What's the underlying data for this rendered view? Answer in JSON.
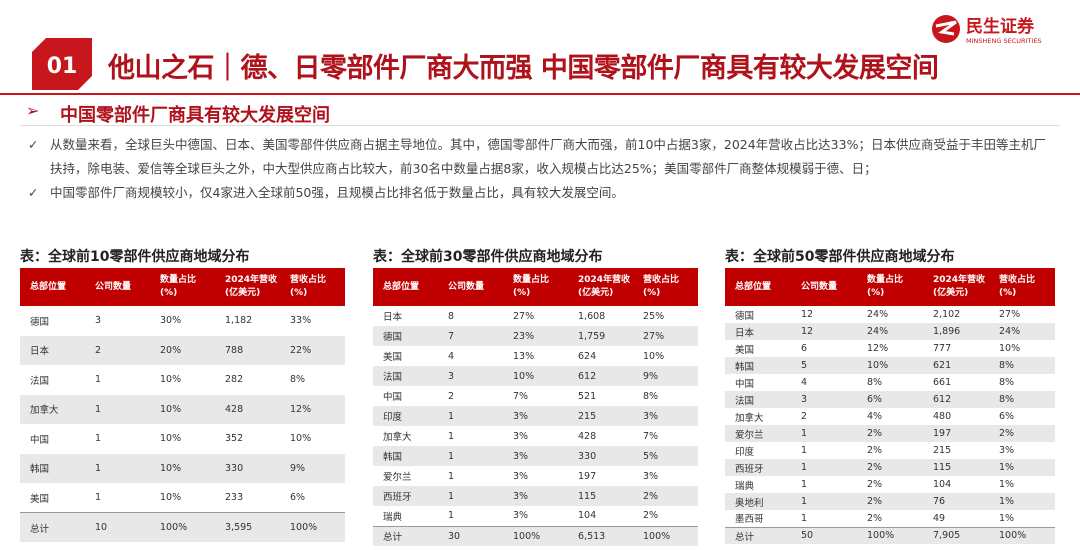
{
  "logo": {
    "name": "民生证券",
    "english": "MINSHENG SECURITIES"
  },
  "header": {
    "number": "01",
    "title": "他山之石｜德、日零部件厂商大而强  中国零部件厂商具有较大发展空间"
  },
  "subtitle": "中国零部件厂商具有较大发展空间",
  "bullets": [
    "从数量来看，全球巨头中德国、日本、美国零部件供应商占据主导地位。其中，德国零部件厂商大而强，前10中占据3家，2024年营收占比达33%；日本供应商受益于丰田等主机厂扶持，除电装、爱信等全球巨头之外，中大型供应商占比较大，前30名中数量占据8家，收入规模占比达25%；美国零部件厂商整体规模弱于德、日；",
    "中国零部件厂商规模较小，仅4家进入全球前50强，且规模占比排名低于数量占比，具有较大发展空间。"
  ],
  "tables": [
    {
      "caption": "表：全球前10零部件供应商地域分布",
      "headers": [
        [
          "总部位置"
        ],
        [
          "公司数量"
        ],
        [
          "数量占比",
          "(%)"
        ],
        [
          "2024年营收",
          "(亿美元)"
        ],
        [
          "营收占比",
          "(%)"
        ]
      ],
      "rows": [
        [
          "德国",
          "3",
          "30%",
          "1,182",
          "33%"
        ],
        [
          "日本",
          "2",
          "20%",
          "788",
          "22%"
        ],
        [
          "法国",
          "1",
          "10%",
          "282",
          "8%"
        ],
        [
          "加拿大",
          "1",
          "10%",
          "428",
          "12%"
        ],
        [
          "中国",
          "1",
          "10%",
          "352",
          "10%"
        ],
        [
          "韩国",
          "1",
          "10%",
          "330",
          "9%"
        ],
        [
          "美国",
          "1",
          "10%",
          "233",
          "6%"
        ],
        [
          "总计",
          "10",
          "100%",
          "3,595",
          "100%"
        ]
      ]
    },
    {
      "caption": "表：全球前30零部件供应商地域分布",
      "headers": [
        [
          "总部位置"
        ],
        [
          "公司数量"
        ],
        [
          "数量占比",
          "(%)"
        ],
        [
          "2024年营收",
          "(亿美元)"
        ],
        [
          "营收占比",
          "(%)"
        ]
      ],
      "rows": [
        [
          "日本",
          "8",
          "27%",
          "1,608",
          "25%"
        ],
        [
          "德国",
          "7",
          "23%",
          "1,759",
          "27%"
        ],
        [
          "美国",
          "4",
          "13%",
          "624",
          "10%"
        ],
        [
          "法国",
          "3",
          "10%",
          "612",
          "9%"
        ],
        [
          "中国",
          "2",
          "7%",
          "521",
          "8%"
        ],
        [
          "印度",
          "1",
          "3%",
          "215",
          "3%"
        ],
        [
          "加拿大",
          "1",
          "3%",
          "428",
          "7%"
        ],
        [
          "韩国",
          "1",
          "3%",
          "330",
          "5%"
        ],
        [
          "爱尔兰",
          "1",
          "3%",
          "197",
          "3%"
        ],
        [
          "西班牙",
          "1",
          "3%",
          "115",
          "2%"
        ],
        [
          "瑞典",
          "1",
          "3%",
          "104",
          "2%"
        ],
        [
          "总计",
          "30",
          "100%",
          "6,513",
          "100%"
        ]
      ]
    },
    {
      "caption": "表：全球前50零部件供应商地域分布",
      "headers": [
        [
          "总部位置"
        ],
        [
          "公司数量"
        ],
        [
          "数量占比",
          "(%)"
        ],
        [
          "2024年营收",
          "(亿美元)"
        ],
        [
          "营收占比",
          "(%)"
        ]
      ],
      "rows": [
        [
          "德国",
          "12",
          "24%",
          "2,102",
          "27%"
        ],
        [
          "日本",
          "12",
          "24%",
          "1,896",
          "24%"
        ],
        [
          "美国",
          "6",
          "12%",
          "777",
          "10%"
        ],
        [
          "韩国",
          "5",
          "10%",
          "621",
          "8%"
        ],
        [
          "中国",
          "4",
          "8%",
          "661",
          "8%"
        ],
        [
          "法国",
          "3",
          "6%",
          "612",
          "8%"
        ],
        [
          "加拿大",
          "2",
          "4%",
          "480",
          "6%"
        ],
        [
          "爱尔兰",
          "1",
          "2%",
          "197",
          "2%"
        ],
        [
          "印度",
          "1",
          "2%",
          "215",
          "3%"
        ],
        [
          "西班牙",
          "1",
          "2%",
          "115",
          "1%"
        ],
        [
          "瑞典",
          "1",
          "2%",
          "104",
          "1%"
        ],
        [
          "奥地利",
          "1",
          "2%",
          "76",
          "1%"
        ],
        [
          "墨西哥",
          "1",
          "2%",
          "49",
          "1%"
        ],
        [
          "总计",
          "50",
          "100%",
          "7,905",
          "100%"
        ]
      ]
    }
  ]
}
